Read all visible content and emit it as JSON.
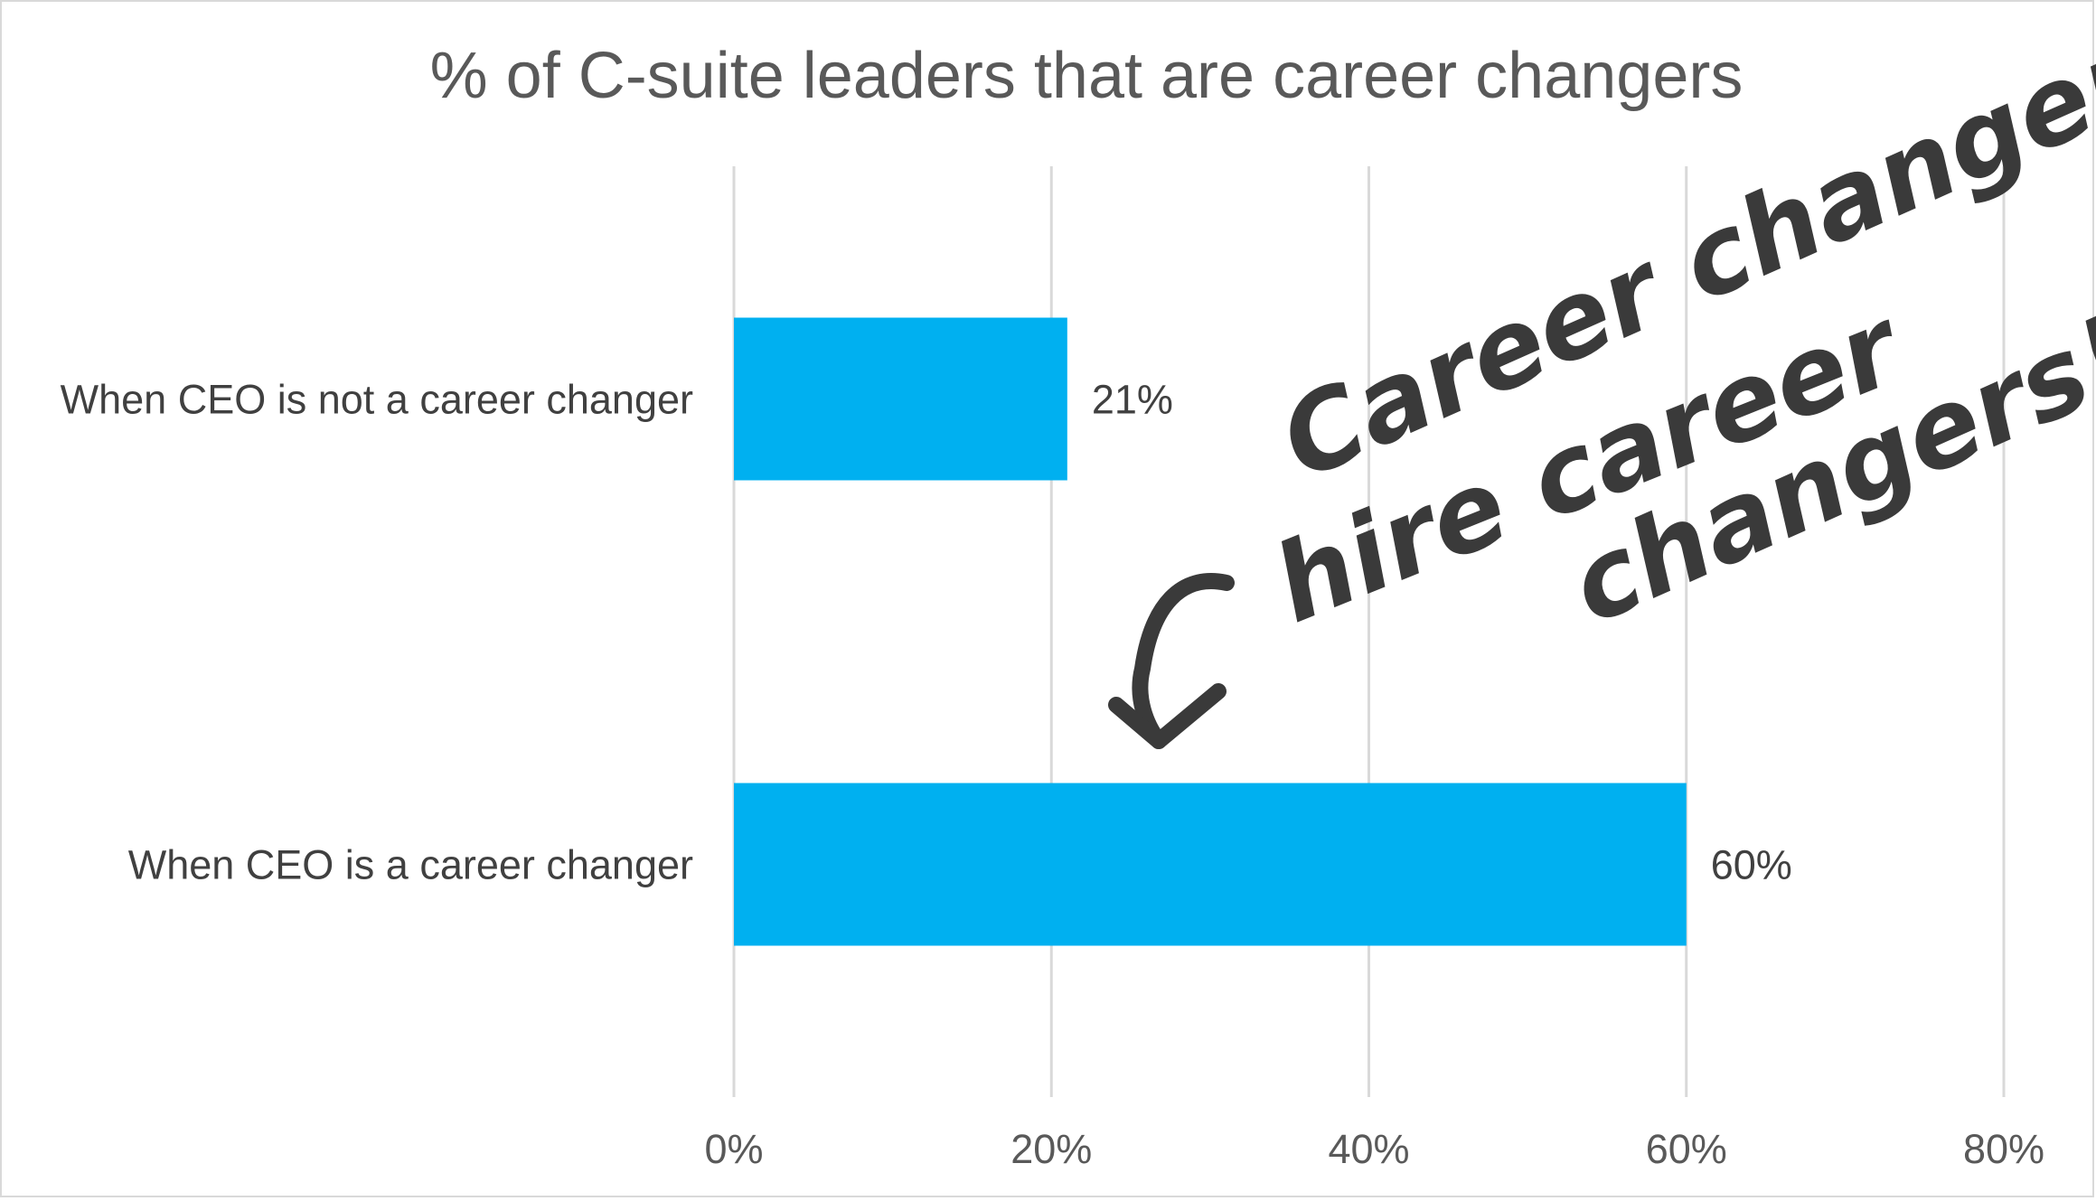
{
  "chart_data": {
    "type": "bar",
    "orientation": "horizontal",
    "title": "% of C-suite leaders that are career changers",
    "categories": [
      "When CEO is not a career changer",
      "When CEO is a career changer"
    ],
    "values": [
      21,
      60
    ],
    "data_labels": [
      "21%",
      "60%"
    ],
    "xlim": [
      0,
      80
    ],
    "xticks": [
      0,
      20,
      40,
      60,
      80
    ],
    "xtick_labels": [
      "0%",
      "20%",
      "40%",
      "60%",
      "80%"
    ],
    "xlabel": "",
    "ylabel": "",
    "grid": true,
    "bar_color": "#00b0f0",
    "annotation": {
      "lines": [
        "Career changers",
        "hire career",
        "changers!"
      ]
    }
  }
}
